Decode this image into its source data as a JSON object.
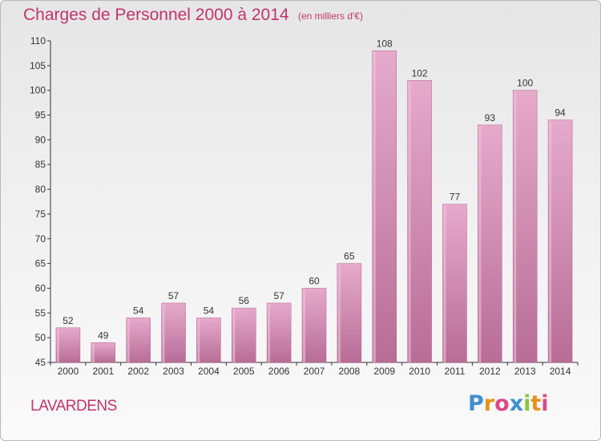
{
  "header": {
    "title": "Charges de Personnel 2000 à 2014",
    "subtitle": "(en milliers d'€)"
  },
  "commune": "LAVARDENS",
  "logo": {
    "text": "Proxiti",
    "colors": [
      "#3f8fd0",
      "#e8901a",
      "#d94a8a",
      "#3f8fd0",
      "#8cc43c",
      "#e8901a",
      "#d94a8a"
    ]
  },
  "colors": {
    "bar_light": "#e6aacb",
    "bar_dark": "#c3779f",
    "accent": "#c0346e"
  },
  "chart_data": {
    "type": "bar",
    "categories": [
      "2000",
      "2001",
      "2002",
      "2003",
      "2004",
      "2005",
      "2006",
      "2007",
      "2008",
      "2009",
      "2010",
      "2011",
      "2012",
      "2013",
      "2014"
    ],
    "values": [
      52,
      49,
      54,
      57,
      54,
      56,
      57,
      60,
      65,
      108,
      102,
      77,
      93,
      100,
      94
    ],
    "title": "Charges de Personnel 2000 à 2014",
    "subtitle": "(en milliers d'€)",
    "ylim": [
      45,
      110
    ],
    "yticks": [
      45,
      50,
      55,
      60,
      65,
      70,
      75,
      80,
      85,
      90,
      95,
      100,
      105,
      110
    ],
    "grid": false,
    "data_labels": true
  }
}
